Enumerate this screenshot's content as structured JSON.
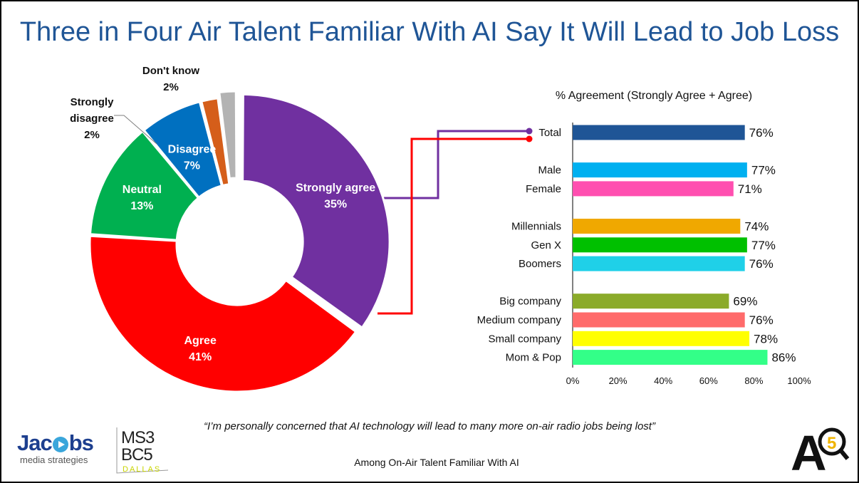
{
  "title": "Three in Four Air Talent Familiar With AI Say It Will Lead to Job Loss",
  "quote": "“I’m personally concerned that AI technology will lead to many more on-air radio jobs being lost”",
  "footnote": "Among On-Air Talent Familiar With AI",
  "logos": {
    "jacobs_word_left": "Jac",
    "jacobs_word_right": "bs",
    "jacobs_sub": "media strategies",
    "ms_line1": "MS3",
    "ms_line2": "BC5",
    "ms_line3": "DALLAS",
    "a5_letter": "A",
    "a5_digit": "5"
  },
  "colors": {
    "title": "#1f5596",
    "strongly_agree": "#7030a0",
    "agree": "#ff0000",
    "neutral": "#00b050",
    "disagree": "#0070c0",
    "strongly_disagree": "#d55e1a",
    "dont_know": "#b3b3b3"
  },
  "chart_data": [
    {
      "type": "pie",
      "variant": "donut",
      "slices": [
        {
          "label": "Strongly agree",
          "value": 35,
          "display": "35%",
          "color": "#7030a0"
        },
        {
          "label": "Agree",
          "value": 41,
          "display": "41%",
          "color": "#ff0000"
        },
        {
          "label": "Neutral",
          "value": 13,
          "display": "13%",
          "color": "#00b050"
        },
        {
          "label": "Disagree",
          "value": 7,
          "display": "7%",
          "color": "#0070c0"
        },
        {
          "label": "Strongly disagree",
          "value": 2,
          "display": "2%",
          "color": "#d55e1a"
        },
        {
          "label": "Don't know",
          "value": 2,
          "display": "2%",
          "color": "#b3b3b3"
        }
      ],
      "exploded": [
        "Strongly agree",
        "Don't know"
      ],
      "outside_labels": {
        "strongly_disagree_line1": "Strongly",
        "strongly_disagree_line2": "disagree",
        "dont_know": "Don't know"
      }
    },
    {
      "type": "bar",
      "orientation": "horizontal",
      "title": "% Agreement (Strongly Agree + Agree)",
      "categories": [
        "Total",
        "Male",
        "Female",
        "Millennials",
        "Gen X",
        "Boomers",
        "Big company",
        "Medium company",
        "Small company",
        "Mom & Pop"
      ],
      "groups": [
        [
          "Total"
        ],
        [
          "Male",
          "Female"
        ],
        [
          "Millennials",
          "Gen X",
          "Boomers"
        ],
        [
          "Big company",
          "Medium company",
          "Small company",
          "Mom & Pop"
        ]
      ],
      "values": [
        76,
        77,
        71,
        74,
        77,
        76,
        69,
        76,
        78,
        86
      ],
      "value_labels": [
        "76%",
        "77%",
        "71%",
        "74%",
        "77%",
        "76%",
        "69%",
        "76%",
        "78%",
        "86%"
      ],
      "colors": [
        "#1f5596",
        "#00b0f0",
        "#ff4fb0",
        "#f0a800",
        "#00c000",
        "#1fd0e8",
        "#8bab2a",
        "#ff6b6b",
        "#ffff00",
        "#33ff88"
      ],
      "xlim": [
        0,
        100
      ],
      "xticks": [
        "0%",
        "20%",
        "40%",
        "60%",
        "80%",
        "100%"
      ],
      "grid": false
    }
  ]
}
